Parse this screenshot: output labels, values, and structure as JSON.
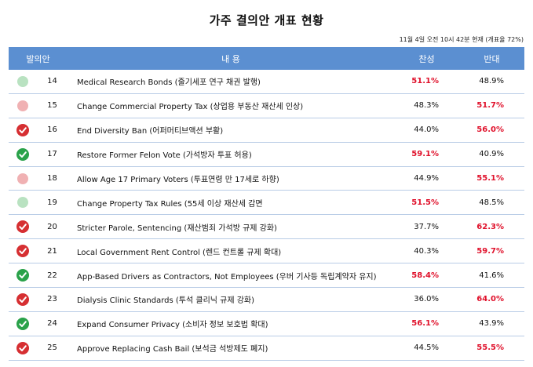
{
  "page": {
    "title": "가주 결의안 개표 현황",
    "subtitle": "11월 4일 오전 10시 42분 현재 (개표율 72%)"
  },
  "table": {
    "headers": {
      "proposition": "발의안",
      "content": "내 용",
      "yes": "찬성",
      "no": "반대"
    },
    "rows": [
      {
        "status": "leading-yes",
        "number": "14",
        "name": "Medical Research Bonds (줄기세포 연구 채권 발행)",
        "yes": "51.1%",
        "no": "48.9%",
        "winner": "yes"
      },
      {
        "status": "leading-no",
        "number": "15",
        "name": "Change Commercial Property Tax (상업용 부동산 재산세 인상)",
        "yes": "48.3%",
        "no": "51.7%",
        "winner": "no"
      },
      {
        "status": "rejected",
        "number": "16",
        "name": "End Diversity Ban (어퍼머티브액션 부활)",
        "yes": "44.0%",
        "no": "56.0%",
        "winner": "no"
      },
      {
        "status": "passed",
        "number": "17",
        "name": "Restore Former Felon Vote (가석방자 투표 허용)",
        "yes": "59.1%",
        "no": "40.9%",
        "winner": "yes"
      },
      {
        "status": "leading-no",
        "number": "18",
        "name": "Allow Age 17 Primary Voters (투표연령 만 17세로 하향)",
        "yes": "44.9%",
        "no": "55.1%",
        "winner": "no"
      },
      {
        "status": "leading-yes",
        "number": "19",
        "name": "Change Property Tax Rules (55세 이상 재산세 감면",
        "yes": "51.5%",
        "no": "48.5%",
        "winner": "yes"
      },
      {
        "status": "rejected",
        "number": "20",
        "name": "Stricter Parole, Sentencing (재산범죄 가석방 규제 강화)",
        "yes": "37.7%",
        "no": "62.3%",
        "winner": "no"
      },
      {
        "status": "rejected",
        "number": "21",
        "name": "Local Government Rent Control (렌드 컨트롤 규제 확대)",
        "yes": "40.3%",
        "no": "59.7%",
        "winner": "no"
      },
      {
        "status": "passed",
        "number": "22",
        "name": "App-Based Drivers as Contractors, Not Employees (우버 기사등 독립계약자 유지)",
        "yes": "58.4%",
        "no": "41.6%",
        "winner": "yes"
      },
      {
        "status": "rejected",
        "number": "23",
        "name": "Dialysis Clinic Standards (투석 클리닉 규제 강화)",
        "yes": "36.0%",
        "no": "64.0%",
        "winner": "no"
      },
      {
        "status": "passed",
        "number": "24",
        "name": "Expand Consumer Privacy (소비자 정보 보호법 확대)",
        "yes": "56.1%",
        "no": "43.9%",
        "winner": "yes"
      },
      {
        "status": "rejected",
        "number": "25",
        "name": "Approve Replacing Cash Bail (보석금 석방제도 폐지)",
        "yes": "44.5%",
        "no": "55.5%",
        "winner": "no"
      }
    ]
  },
  "colors": {
    "header_bg": "#5b8fd1",
    "winner_text": "#e0112b",
    "passed": "#2aa24a",
    "rejected": "#d62f32",
    "leading_yes": "#b9e2c1",
    "leading_no": "#f0b1b3"
  },
  "icons": {
    "passed": "check-circle-green-icon",
    "rejected": "check-circle-red-icon",
    "leading-yes": "light-green-dot-icon",
    "leading-no": "light-red-dot-icon"
  }
}
